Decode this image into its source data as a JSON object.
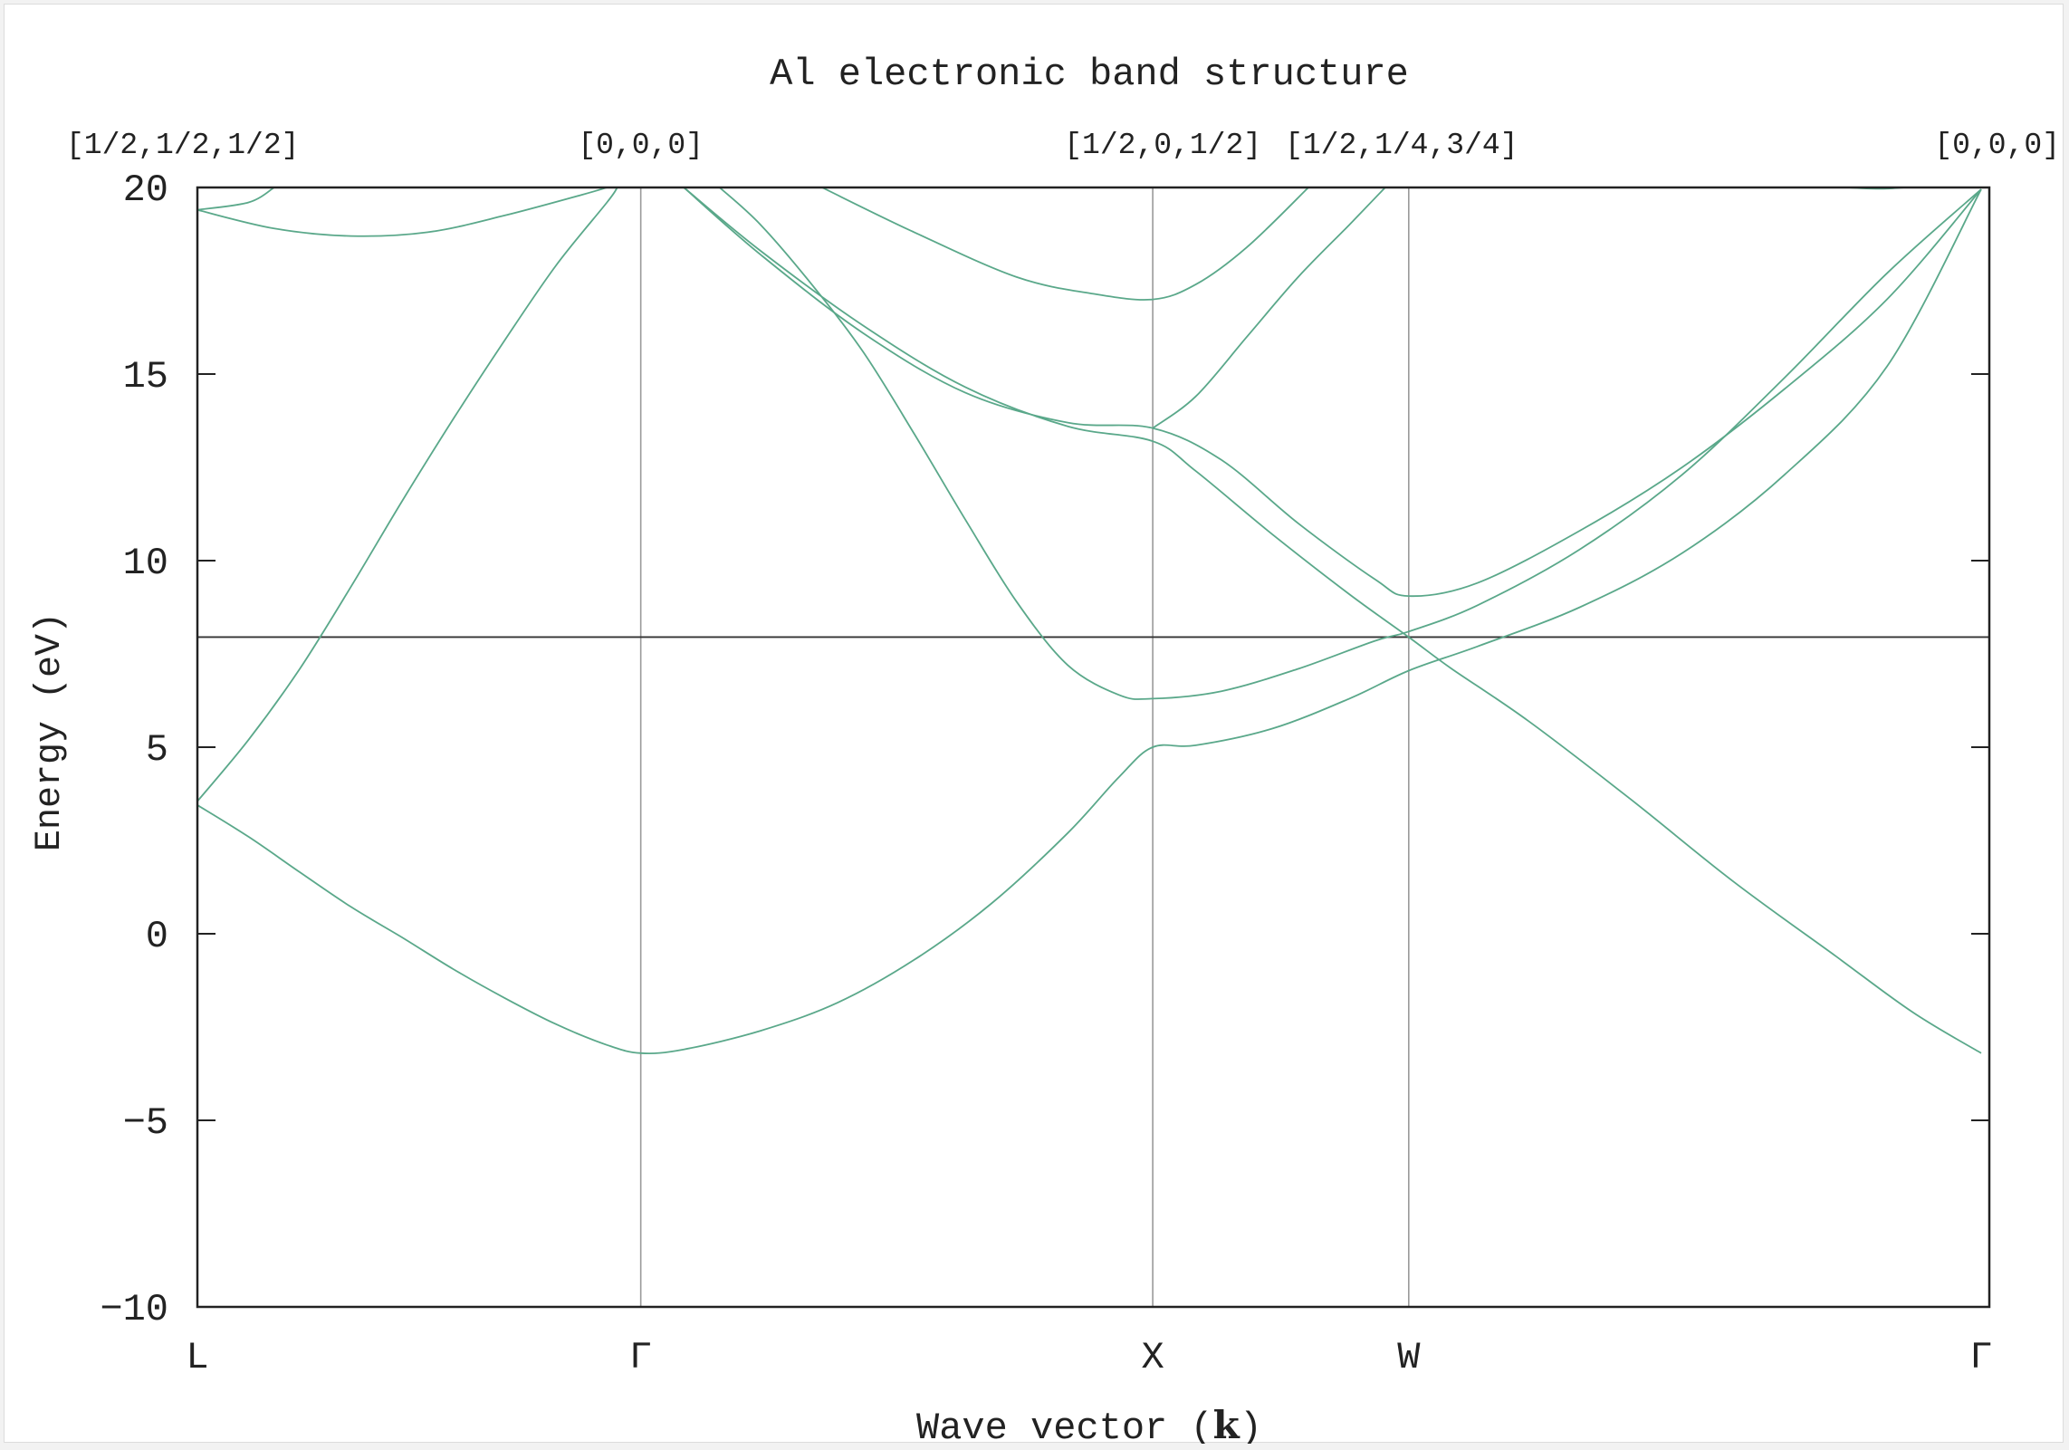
{
  "chart_data": {
    "type": "line",
    "title": "Al electronic band structure",
    "xlabel_prefix": "Wave vector (",
    "xlabel_symbol": "k",
    "xlabel_suffix": ")",
    "ylabel": "Energy (eV)",
    "ylim": [
      -10,
      20
    ],
    "yticks": [
      -10,
      -5,
      0,
      5,
      10,
      15,
      20
    ],
    "yticks_labels": [
      "−10",
      "−5",
      "0",
      "5",
      "10",
      "15",
      "20"
    ],
    "xlim": [
      0,
      3.5
    ],
    "kpoints": [
      {
        "x": 0,
        "label": "L",
        "coord": "[1/2,1/2,1/2]"
      },
      {
        "x": 0.866,
        "label": "Γ",
        "coord": "[0,0,0]"
      },
      {
        "x": 1.866,
        "label": "X",
        "coord": "[1/2,0,1/2]"
      },
      {
        "x": 2.366,
        "label": "W",
        "coord": "[1/2,1/4,3/4]"
      },
      {
        "x": 3.484,
        "label": "Γ",
        "coord": "[0,0,0]"
      }
    ],
    "fermi_level": 7.95,
    "grid": "vertical lines at high-symmetry points",
    "colors": {
      "band": "#5aa88a",
      "axis": "#222222",
      "vline": "#9a9a9a",
      "fermi": "#333333"
    },
    "series": [
      {
        "points": [
          [
            0,
            3.45
          ],
          [
            0.1,
            2.6
          ],
          [
            0.2,
            1.65
          ],
          [
            0.3,
            0.72
          ],
          [
            0.4,
            -0.1
          ],
          [
            0.5,
            -0.95
          ],
          [
            0.6,
            -1.72
          ],
          [
            0.7,
            -2.42
          ],
          [
            0.8,
            -2.98
          ],
          [
            0.866,
            -3.2
          ],
          [
            0.95,
            -3.1
          ],
          [
            1.1,
            -2.6
          ],
          [
            1.25,
            -1.85
          ],
          [
            1.4,
            -0.7
          ],
          [
            1.55,
            0.8
          ],
          [
            1.7,
            2.7
          ],
          [
            1.8,
            4.2
          ],
          [
            1.866,
            5.0
          ],
          [
            1.95,
            5.05
          ],
          [
            2.1,
            5.5
          ],
          [
            2.25,
            6.3
          ],
          [
            2.366,
            7.05
          ],
          [
            2.5,
            7.7
          ],
          [
            2.7,
            8.75
          ],
          [
            2.9,
            10.2
          ],
          [
            3.1,
            12.3
          ],
          [
            3.3,
            15.2
          ],
          [
            3.484,
            19.95
          ]
        ]
      },
      {
        "points": [
          [
            0,
            3.55
          ],
          [
            0.1,
            5.2
          ],
          [
            0.2,
            7.1
          ],
          [
            0.3,
            9.3
          ],
          [
            0.4,
            11.6
          ],
          [
            0.5,
            13.8
          ],
          [
            0.6,
            15.9
          ],
          [
            0.7,
            17.9
          ],
          [
            0.8,
            19.6
          ],
          [
            0.82,
            20
          ]
        ]
      },
      {
        "points": [
          [
            1.02,
            20
          ],
          [
            1.1,
            19.0
          ],
          [
            1.2,
            17.4
          ],
          [
            1.3,
            15.6
          ],
          [
            1.4,
            13.4
          ],
          [
            1.5,
            11.1
          ],
          [
            1.6,
            8.9
          ],
          [
            1.7,
            7.2
          ],
          [
            1.8,
            6.4
          ],
          [
            1.866,
            6.3
          ],
          [
            2.0,
            6.5
          ],
          [
            2.15,
            7.1
          ],
          [
            2.3,
            7.85
          ],
          [
            2.366,
            8.1
          ],
          [
            2.5,
            8.8
          ],
          [
            2.7,
            10.3
          ],
          [
            2.9,
            12.3
          ],
          [
            3.1,
            14.9
          ],
          [
            3.3,
            17.7
          ],
          [
            3.484,
            19.95
          ]
        ]
      },
      {
        "points": [
          [
            0.95,
            20
          ],
          [
            1.1,
            18.3
          ],
          [
            1.3,
            16.3
          ],
          [
            1.5,
            14.65
          ],
          [
            1.7,
            13.6
          ],
          [
            1.866,
            13.2
          ],
          [
            1.95,
            12.4
          ],
          [
            2.1,
            10.7
          ],
          [
            2.25,
            9.1
          ],
          [
            2.366,
            7.95
          ],
          [
            2.45,
            7.1
          ],
          [
            2.6,
            5.7
          ],
          [
            2.8,
            3.6
          ],
          [
            3.0,
            1.4
          ],
          [
            3.2,
            -0.6
          ],
          [
            3.35,
            -2.1
          ],
          [
            3.484,
            -3.2
          ]
        ]
      },
      {
        "points": [
          [
            0.95,
            20
          ],
          [
            1.1,
            18.2
          ],
          [
            1.3,
            16.1
          ],
          [
            1.5,
            14.5
          ],
          [
            1.7,
            13.7
          ],
          [
            1.866,
            13.55
          ],
          [
            2.0,
            12.7
          ],
          [
            2.15,
            11.0
          ],
          [
            2.3,
            9.5
          ],
          [
            2.366,
            9.05
          ],
          [
            2.5,
            9.4
          ],
          [
            2.7,
            10.8
          ],
          [
            2.9,
            12.5
          ],
          [
            3.1,
            14.6
          ],
          [
            3.3,
            17.0
          ],
          [
            3.484,
            19.95
          ]
        ]
      },
      {
        "points": [
          [
            1.866,
            13.55
          ],
          [
            1.95,
            14.4
          ],
          [
            2.05,
            16.0
          ],
          [
            2.15,
            17.6
          ],
          [
            2.25,
            19.0
          ],
          [
            2.32,
            20
          ]
        ]
      },
      {
        "points": [
          [
            1.22,
            20
          ],
          [
            1.4,
            18.8
          ],
          [
            1.6,
            17.6
          ],
          [
            1.75,
            17.15
          ],
          [
            1.866,
            17.0
          ],
          [
            1.95,
            17.4
          ],
          [
            2.05,
            18.4
          ],
          [
            2.17,
            20
          ]
        ]
      },
      {
        "points": [
          [
            0,
            19.4
          ],
          [
            0.1,
            19.6
          ],
          [
            0.15,
            20
          ]
        ]
      },
      {
        "points": [
          [
            0,
            19.4
          ],
          [
            0.15,
            18.9
          ],
          [
            0.3,
            18.7
          ],
          [
            0.45,
            18.8
          ],
          [
            0.6,
            19.25
          ],
          [
            0.75,
            19.8
          ],
          [
            0.8,
            20
          ]
        ]
      },
      {
        "points": [
          [
            3.2,
            20.02
          ],
          [
            3.25,
            19.98
          ],
          [
            3.3,
            19.97
          ],
          [
            3.35,
            20.02
          ]
        ]
      }
    ]
  }
}
